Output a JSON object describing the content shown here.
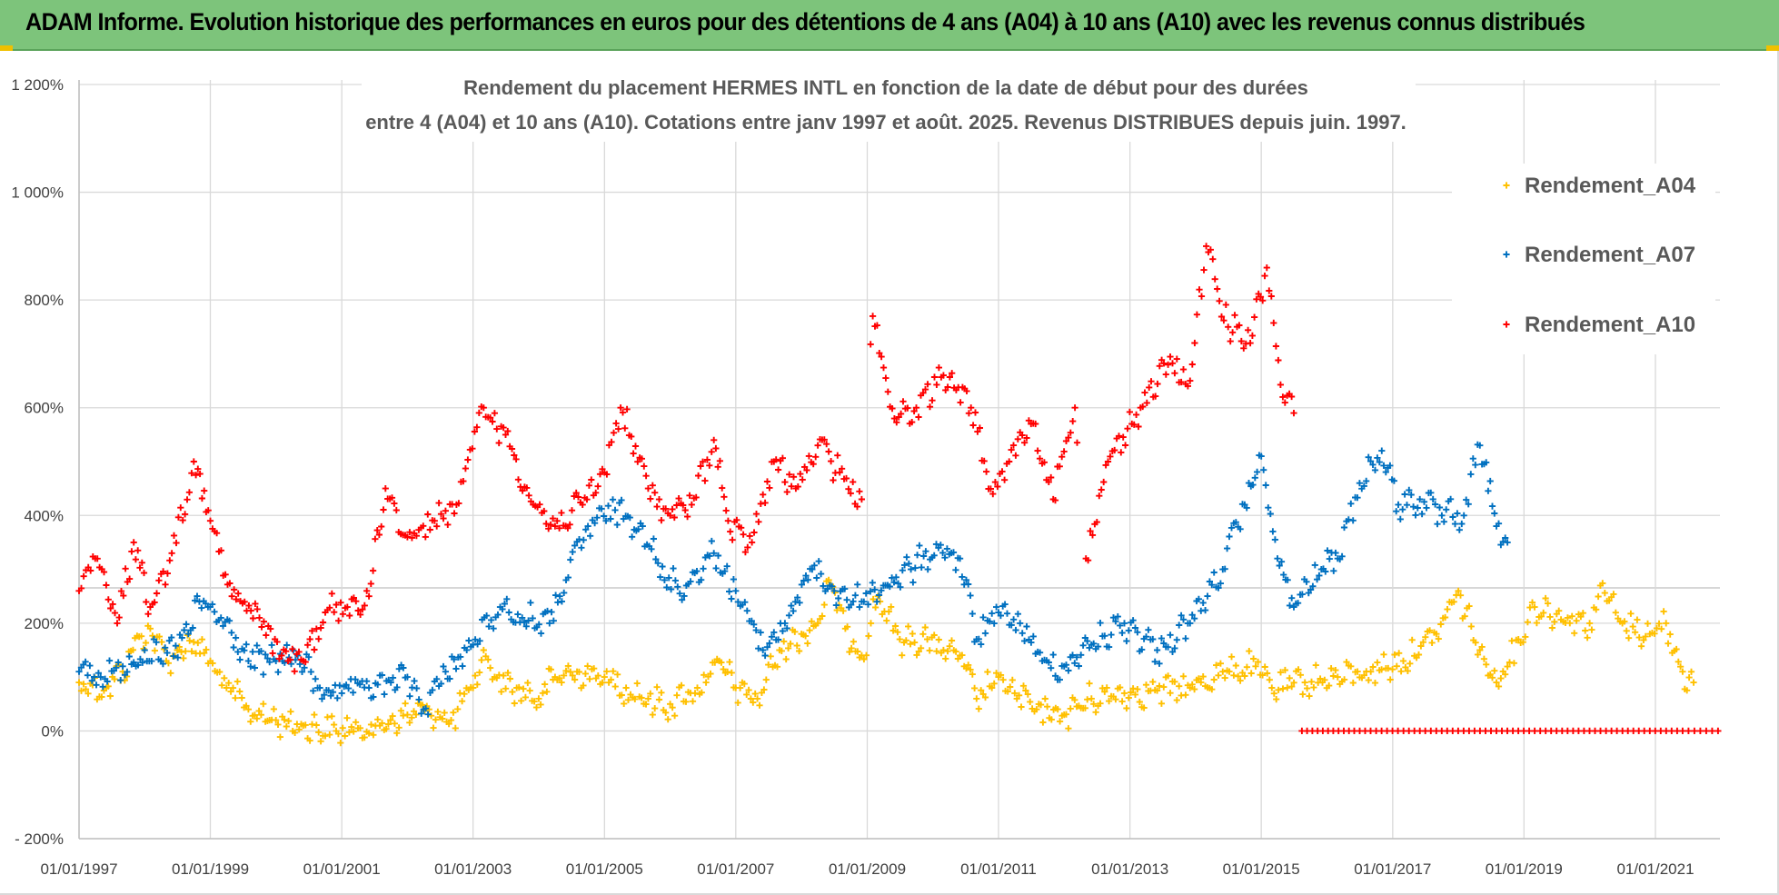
{
  "banner": {
    "title": "ADAM Informe. Evolution historique des performances en euros pour des détentions de 4 ans (A04) à 10 ans (A10) avec les revenus connus distribués"
  },
  "colors": {
    "banner_bg": "#7dc47b",
    "grid": "#d9d9d9",
    "A04": "#ffc000",
    "A07": "#0070c0",
    "A10": "#ff0000"
  },
  "chart_data": {
    "type": "scatter",
    "title_line1": "Rendement du placement HERMES INTL en fonction de la date de début pour des durées",
    "title_line2": "entre 4 (A04) et 10 ans (A10).  Cotations entre janv 1997 et août. 2025. Revenus DISTRIBUES depuis juin. 1997.",
    "xlabel": "",
    "ylabel": "",
    "x_range": [
      "1997-01-01",
      "2022-01-01"
    ],
    "ylim": [
      -200,
      1200
    ],
    "y_ticks": [
      -200,
      0,
      200,
      400,
      600,
      800,
      1000,
      1200
    ],
    "y_tick_labels": [
      "- 200%",
      "0%",
      "200%",
      "400%",
      "600%",
      "800%",
      "1 000%",
      "1 200%"
    ],
    "x_ticks": [
      "1997-01-01",
      "1999-01-01",
      "2001-01-01",
      "2003-01-01",
      "2005-01-01",
      "2007-01-01",
      "2009-01-01",
      "2011-01-01",
      "2013-01-01",
      "2015-01-01",
      "2017-01-01",
      "2019-01-01",
      "2021-01-01"
    ],
    "x_tick_labels": [
      "01/01/1997",
      "01/01/1999",
      "01/01/2001",
      "01/01/2003",
      "01/01/2005",
      "01/01/2007",
      "01/01/2009",
      "01/01/2011",
      "01/01/2013",
      "01/01/2015",
      "01/01/2017",
      "01/01/2019",
      "01/01/2021"
    ],
    "grid": true,
    "legend_position": "right",
    "marker": "+",
    "series": [
      {
        "name": "Rendement_A04",
        "color": "#ffc000",
        "points": [
          [
            "1997-01-01",
            90
          ],
          [
            "1997-06-01",
            80
          ],
          [
            "1997-09-01",
            110
          ],
          [
            "1997-12-01",
            175
          ],
          [
            "1998-02-01",
            190
          ],
          [
            "1998-05-01",
            130
          ],
          [
            "1998-07-01",
            150
          ],
          [
            "1998-10-01",
            165
          ],
          [
            "1999-01-01",
            130
          ],
          [
            "1999-04-01",
            80
          ],
          [
            "1999-08-01",
            40
          ],
          [
            "2000-01-01",
            20
          ],
          [
            "2000-06-01",
            10
          ],
          [
            "2000-12-01",
            0
          ],
          [
            "2001-04-01",
            5
          ],
          [
            "2001-08-01",
            10
          ],
          [
            "2002-01-01",
            30
          ],
          [
            "2002-05-01",
            40
          ],
          [
            "2002-09-01",
            20
          ],
          [
            "2003-01-01",
            80
          ],
          [
            "2003-03-01",
            150
          ],
          [
            "2003-05-01",
            100
          ],
          [
            "2003-09-01",
            80
          ],
          [
            "2004-01-01",
            60
          ],
          [
            "2004-04-01",
            100
          ],
          [
            "2004-08-01",
            110
          ],
          [
            "2005-01-01",
            100
          ],
          [
            "2005-05-01",
            80
          ],
          [
            "2005-09-01",
            60
          ],
          [
            "2006-01-01",
            50
          ],
          [
            "2006-06-01",
            80
          ],
          [
            "2006-10-01",
            130
          ],
          [
            "2007-01-01",
            80
          ],
          [
            "2007-05-01",
            60
          ],
          [
            "2007-09-01",
            150
          ],
          [
            "2008-01-01",
            180
          ],
          [
            "2008-04-01",
            200
          ],
          [
            "2008-06-01",
            280
          ],
          [
            "2008-09-01",
            190
          ],
          [
            "2008-12-01",
            140
          ],
          [
            "2009-03-01",
            250
          ],
          [
            "2009-07-01",
            170
          ],
          [
            "2009-12-01",
            170
          ],
          [
            "2010-03-01",
            150
          ],
          [
            "2010-06-01",
            140
          ],
          [
            "2010-09-01",
            60
          ],
          [
            "2011-01-01",
            100
          ],
          [
            "2011-04-01",
            70
          ],
          [
            "2011-08-01",
            40
          ],
          [
            "2012-01-01",
            30
          ],
          [
            "2012-06-01",
            60
          ],
          [
            "2012-12-01",
            70
          ],
          [
            "2013-06-01",
            75
          ],
          [
            "2013-12-01",
            80
          ],
          [
            "2014-06-01",
            110
          ],
          [
            "2014-12-01",
            120
          ],
          [
            "2015-03-01",
            80
          ],
          [
            "2015-09-01",
            90
          ],
          [
            "2016-03-01",
            100
          ],
          [
            "2016-09-01",
            110
          ],
          [
            "2017-03-01",
            130
          ],
          [
            "2017-09-01",
            180
          ],
          [
            "2018-01-01",
            260
          ],
          [
            "2018-05-01",
            150
          ],
          [
            "2018-08-01",
            90
          ],
          [
            "2018-12-01",
            170
          ],
          [
            "2019-03-01",
            230
          ],
          [
            "2019-09-01",
            210
          ],
          [
            "2020-01-01",
            200
          ],
          [
            "2020-03-01",
            270
          ],
          [
            "2020-07-01",
            200
          ],
          [
            "2020-12-01",
            180
          ],
          [
            "2021-03-01",
            200
          ],
          [
            "2021-06-01",
            110
          ],
          [
            "2021-08-01",
            90
          ]
        ]
      },
      {
        "name": "Rendement_A07",
        "color": "#0070c0",
        "points": [
          [
            "1997-01-01",
            110
          ],
          [
            "1997-05-01",
            100
          ],
          [
            "1997-09-01",
            120
          ],
          [
            "1998-01-01",
            150
          ],
          [
            "1998-04-01",
            130
          ],
          [
            "1998-09-01",
            180
          ],
          [
            "1998-11-01",
            240
          ],
          [
            "1999-03-01",
            210
          ],
          [
            "1999-08-01",
            130
          ],
          [
            "2000-01-01",
            130
          ],
          [
            "2000-05-01",
            140
          ],
          [
            "2000-09-01",
            80
          ],
          [
            "2001-01-01",
            70
          ],
          [
            "2001-06-01",
            80
          ],
          [
            "2001-10-01",
            90
          ],
          [
            "2002-01-01",
            100
          ],
          [
            "2002-04-01",
            40
          ],
          [
            "2002-08-01",
            110
          ],
          [
            "2003-01-01",
            160
          ],
          [
            "2003-06-01",
            230
          ],
          [
            "2003-10-01",
            210
          ],
          [
            "2004-03-01",
            200
          ],
          [
            "2004-06-01",
            280
          ],
          [
            "2004-10-01",
            380
          ],
          [
            "2005-03-01",
            410
          ],
          [
            "2005-08-01",
            380
          ],
          [
            "2005-12-01",
            280
          ],
          [
            "2006-04-01",
            270
          ],
          [
            "2006-09-01",
            330
          ],
          [
            "2007-01-01",
            260
          ],
          [
            "2007-06-01",
            150
          ],
          [
            "2007-10-01",
            200
          ],
          [
            "2008-03-01",
            300
          ],
          [
            "2008-07-01",
            260
          ],
          [
            "2008-12-01",
            240
          ],
          [
            "2009-04-01",
            270
          ],
          [
            "2009-09-01",
            300
          ],
          [
            "2010-02-01",
            340
          ],
          [
            "2010-06-01",
            320
          ],
          [
            "2010-09-01",
            170
          ],
          [
            "2011-01-01",
            220
          ],
          [
            "2011-05-01",
            200
          ],
          [
            "2011-09-01",
            130
          ],
          [
            "2012-01-01",
            120
          ],
          [
            "2012-06-01",
            160
          ],
          [
            "2012-12-01",
            200
          ],
          [
            "2013-06-01",
            150
          ],
          [
            "2013-12-01",
            200
          ],
          [
            "2014-06-01",
            300
          ],
          [
            "2014-10-01",
            420
          ],
          [
            "2015-01-01",
            510
          ],
          [
            "2015-04-01",
            320
          ],
          [
            "2015-07-01",
            230
          ],
          [
            "2015-12-01",
            300
          ],
          [
            "2016-03-01",
            320
          ],
          [
            "2016-07-01",
            460
          ],
          [
            "2016-11-01",
            520
          ],
          [
            "2017-02-01",
            420
          ],
          [
            "2017-06-01",
            430
          ],
          [
            "2017-10-01",
            400
          ],
          [
            "2018-02-01",
            400
          ],
          [
            "2018-05-01",
            530
          ],
          [
            "2018-08-01",
            380
          ],
          [
            "2018-10-01",
            350
          ]
        ]
      },
      {
        "name": "Rendement_A10",
        "color": "#ff0000",
        "points": [
          [
            "1997-01-01",
            260
          ],
          [
            "1997-04-01",
            320
          ],
          [
            "1997-08-01",
            200
          ],
          [
            "1997-11-01",
            350
          ],
          [
            "1998-02-01",
            230
          ],
          [
            "1998-06-01",
            330
          ],
          [
            "1998-10-01",
            500
          ],
          [
            "1999-01-01",
            390
          ],
          [
            "1999-05-01",
            250
          ],
          [
            "1999-10-01",
            210
          ],
          [
            "2000-02-01",
            140
          ],
          [
            "2000-06-01",
            130
          ],
          [
            "2000-10-01",
            220
          ],
          [
            "2001-02-01",
            230
          ],
          [
            "2001-06-01",
            250
          ],
          [
            "2001-09-01",
            450
          ],
          [
            "2002-01-01",
            360
          ],
          [
            "2002-06-01",
            390
          ],
          [
            "2002-10-01",
            420
          ],
          [
            "2003-03-01",
            600
          ],
          [
            "2003-07-01",
            550
          ],
          [
            "2003-12-01",
            420
          ],
          [
            "2004-04-01",
            380
          ],
          [
            "2004-09-01",
            420
          ],
          [
            "2005-01-01",
            480
          ],
          [
            "2005-04-01",
            600
          ],
          [
            "2005-09-01",
            450
          ],
          [
            "2006-01-01",
            400
          ],
          [
            "2006-05-01",
            420
          ],
          [
            "2006-09-01",
            540
          ],
          [
            "2006-12-01",
            370
          ],
          [
            "2007-04-01",
            350
          ],
          [
            "2007-08-01",
            500
          ],
          [
            "2007-12-01",
            450
          ],
          [
            "2008-04-01",
            530
          ],
          [
            "2008-08-01",
            480
          ],
          [
            "2008-12-01",
            430
          ],
          [
            "2009-02-01",
            770
          ],
          [
            "2009-06-01",
            580
          ],
          [
            "2009-10-01",
            600
          ],
          [
            "2010-03-01",
            660
          ],
          [
            "2010-08-01",
            600
          ],
          [
            "2010-12-01",
            440
          ],
          [
            "2011-03-01",
            500
          ],
          [
            "2011-07-01",
            570
          ],
          [
            "2011-11-01",
            430
          ],
          [
            "2012-03-01",
            600
          ],
          [
            "2012-05-01",
            320
          ],
          [
            "2012-09-01",
            500
          ],
          [
            "2013-03-01",
            600
          ],
          [
            "2013-08-01",
            680
          ],
          [
            "2013-12-01",
            650
          ],
          [
            "2014-03-01",
            900
          ],
          [
            "2014-07-01",
            750
          ],
          [
            "2014-11-01",
            720
          ],
          [
            "2015-02-01",
            860
          ],
          [
            "2015-05-01",
            620
          ],
          [
            "2015-07-01",
            590
          ],
          [
            "2015-08-15",
            0
          ],
          [
            "2016-06-01",
            0
          ],
          [
            "2017-06-01",
            0
          ],
          [
            "2018-06-01",
            0
          ],
          [
            "2019-06-01",
            0
          ],
          [
            "2020-06-01",
            0
          ],
          [
            "2021-06-01",
            0
          ],
          [
            "2021-12-15",
            0
          ]
        ]
      }
    ]
  }
}
